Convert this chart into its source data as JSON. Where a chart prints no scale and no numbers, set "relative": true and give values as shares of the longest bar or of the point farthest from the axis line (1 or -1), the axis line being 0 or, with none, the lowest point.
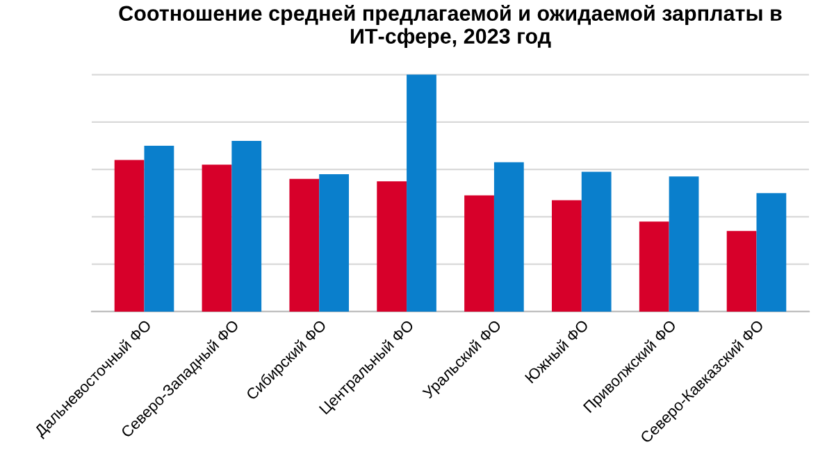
{
  "chart_data": {
    "type": "bar",
    "title": "Соотношение средней предлагаемой и ожидаемой зарплаты в\nИТ-сфере, 2023 год",
    "categories": [
      "Дальневосточный ФО",
      "Северо-Западный ФО",
      "Сибирский ФО",
      "Центральный ФО",
      "Уральский ФО",
      "Южный ФО",
      "Приволжский ФО",
      "Северо-Кавказский ФО"
    ],
    "series": [
      {
        "color": "#d7002a",
        "values": [
          0.64,
          0.62,
          0.56,
          0.55,
          0.49,
          0.47,
          0.38,
          0.34
        ]
      },
      {
        "color": "#0a7fcc",
        "values": [
          0.7,
          0.72,
          0.58,
          1.0,
          0.63,
          0.59,
          0.57,
          0.5
        ]
      }
    ],
    "relative": true,
    "grid": "y",
    "legend": false
  }
}
